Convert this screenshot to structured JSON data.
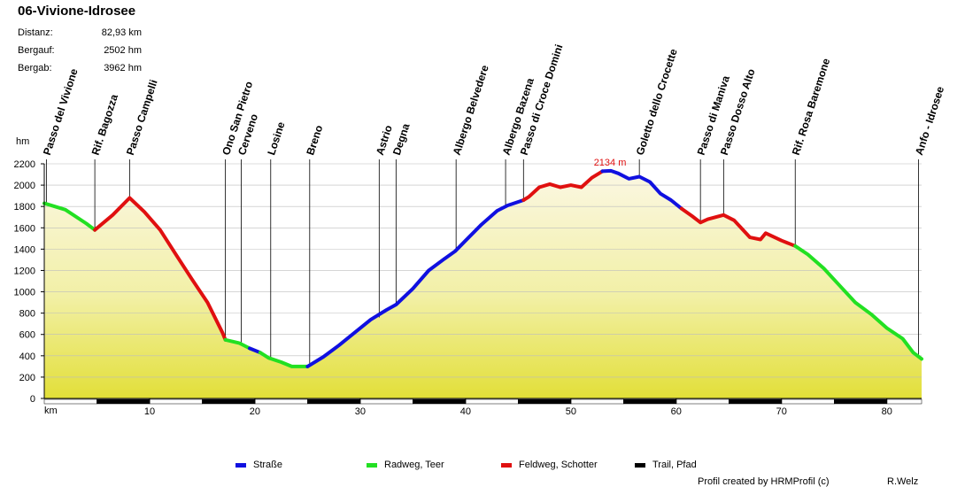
{
  "title": "06-Vivione-Idrosee",
  "stats": [
    {
      "label": "Distanz:",
      "value": "82,93 km"
    },
    {
      "label": "Bergauf:",
      "value": "2502 hm"
    },
    {
      "label": "Bergab:",
      "value": "3962 hm"
    }
  ],
  "chart_data": {
    "type": "area",
    "title": "06-Vivione-Idrosee",
    "xlabel": "km",
    "ylabel": "hm",
    "xlim": [
      0,
      83.3
    ],
    "ylim": [
      0,
      2200
    ],
    "xticks": [
      10,
      20,
      30,
      40,
      50,
      60,
      70,
      80
    ],
    "yticks": [
      0,
      200,
      400,
      600,
      800,
      1000,
      1200,
      1400,
      1600,
      1800,
      2000,
      2200
    ],
    "grid": "horizontal",
    "max_label": "2134 m",
    "max_point": {
      "km": 53.8,
      "elev": 2134
    },
    "profile": [
      [
        0,
        1830
      ],
      [
        2,
        1770
      ],
      [
        4,
        1640
      ],
      [
        4.8,
        1580
      ],
      [
        6.5,
        1720
      ],
      [
        8.1,
        1880
      ],
      [
        9.5,
        1750
      ],
      [
        11,
        1580
      ],
      [
        12.5,
        1350
      ],
      [
        14,
        1120
      ],
      [
        15.5,
        900
      ],
      [
        16.9,
        620
      ],
      [
        17.2,
        550
      ],
      [
        18.5,
        520
      ],
      [
        19.5,
        470
      ],
      [
        20.5,
        430
      ],
      [
        21.3,
        380
      ],
      [
        22.5,
        340
      ],
      [
        23.5,
        300
      ],
      [
        25,
        300
      ],
      [
        26.5,
        390
      ],
      [
        28,
        500
      ],
      [
        29.5,
        620
      ],
      [
        31,
        740
      ],
      [
        32.5,
        830
      ],
      [
        33.4,
        880
      ],
      [
        35,
        1030
      ],
      [
        36.5,
        1200
      ],
      [
        38,
        1310
      ],
      [
        39,
        1380
      ],
      [
        40,
        1480
      ],
      [
        41.5,
        1630
      ],
      [
        43,
        1760
      ],
      [
        44,
        1810
      ],
      [
        45.5,
        1860
      ],
      [
        46,
        1890
      ],
      [
        47,
        1980
      ],
      [
        48,
        2010
      ],
      [
        49,
        1980
      ],
      [
        50,
        2000
      ],
      [
        51,
        1980
      ],
      [
        52,
        2070
      ],
      [
        53,
        2130
      ],
      [
        53.8,
        2134
      ],
      [
        54.5,
        2110
      ],
      [
        55.5,
        2060
      ],
      [
        56.5,
        2080
      ],
      [
        57.5,
        2030
      ],
      [
        58.5,
        1920
      ],
      [
        59.5,
        1860
      ],
      [
        60.5,
        1780
      ],
      [
        61.5,
        1710
      ],
      [
        62.3,
        1650
      ],
      [
        63,
        1680
      ],
      [
        64.5,
        1720
      ],
      [
        65.5,
        1670
      ],
      [
        67,
        1510
      ],
      [
        68,
        1490
      ],
      [
        68.5,
        1550
      ],
      [
        70,
        1480
      ],
      [
        71.3,
        1430
      ],
      [
        72.5,
        1350
      ],
      [
        74,
        1220
      ],
      [
        75.5,
        1060
      ],
      [
        77,
        900
      ],
      [
        78.5,
        790
      ],
      [
        80,
        660
      ],
      [
        81.5,
        560
      ],
      [
        82.5,
        430
      ],
      [
        83.3,
        370
      ]
    ],
    "segments": [
      {
        "from_km": 0,
        "to_km": 4.8,
        "surface": "Radweg, Teer"
      },
      {
        "from_km": 4.8,
        "to_km": 17.2,
        "surface": "Feldweg, Schotter"
      },
      {
        "from_km": 17.2,
        "to_km": 19.5,
        "surface": "Radweg, Teer"
      },
      {
        "from_km": 19.5,
        "to_km": 20.5,
        "surface": "Straße"
      },
      {
        "from_km": 20.5,
        "to_km": 25,
        "surface": "Radweg, Teer"
      },
      {
        "from_km": 25,
        "to_km": 45.5,
        "surface": "Straße"
      },
      {
        "from_km": 45.5,
        "to_km": 53,
        "surface": "Feldweg, Schotter"
      },
      {
        "from_km": 53,
        "to_km": 60.5,
        "surface": "Straße"
      },
      {
        "from_km": 60.5,
        "to_km": 71.3,
        "surface": "Feldweg, Schotter"
      },
      {
        "from_km": 71.3,
        "to_km": 83.3,
        "surface": "Radweg, Teer"
      }
    ],
    "waypoints": [
      {
        "km": 0.2,
        "elev": 1830,
        "name": "Passo del Vivione"
      },
      {
        "km": 4.8,
        "elev": 1580,
        "name": "Rif. Bagozza"
      },
      {
        "km": 8.1,
        "elev": 1880,
        "name": "Passo Campelli"
      },
      {
        "km": 17.2,
        "elev": 550,
        "name": "Ono San Pietro"
      },
      {
        "km": 18.7,
        "elev": 510,
        "name": "Cerveno"
      },
      {
        "km": 21.5,
        "elev": 380,
        "name": "Losine"
      },
      {
        "km": 25.2,
        "elev": 310,
        "name": "Breno"
      },
      {
        "km": 31.8,
        "elev": 760,
        "name": "Astrio"
      },
      {
        "km": 33.4,
        "elev": 880,
        "name": "Degna"
      },
      {
        "km": 39.1,
        "elev": 1390,
        "name": "Albergo Belvedere"
      },
      {
        "km": 43.8,
        "elev": 1800,
        "name": "Albergo Bazena"
      },
      {
        "km": 45.5,
        "elev": 1860,
        "name": "Passo di Croce Domini"
      },
      {
        "km": 56.5,
        "elev": 2080,
        "name": "Goletto dello Crocette"
      },
      {
        "km": 62.3,
        "elev": 1650,
        "name": "Passo di Maniva"
      },
      {
        "km": 64.5,
        "elev": 1720,
        "name": "Passo Dosso Alto"
      },
      {
        "km": 71.3,
        "elev": 1430,
        "name": "Rif. Rosa Baremone"
      },
      {
        "km": 83.0,
        "elev": 380,
        "name": "Anfo - Idrosee"
      }
    ],
    "legend": [
      {
        "label": "Straße",
        "color": "#1010e0"
      },
      {
        "label": "Radweg, Teer",
        "color": "#22e022"
      },
      {
        "label": "Feldweg, Schotter",
        "color": "#e01010"
      },
      {
        "label": "Trail, Pfad",
        "color": "#000000"
      }
    ]
  },
  "axis_units": {
    "y": "hm",
    "x": "km"
  },
  "credit": "Profil created by HRMProfil (c)",
  "author": "R.Welz"
}
